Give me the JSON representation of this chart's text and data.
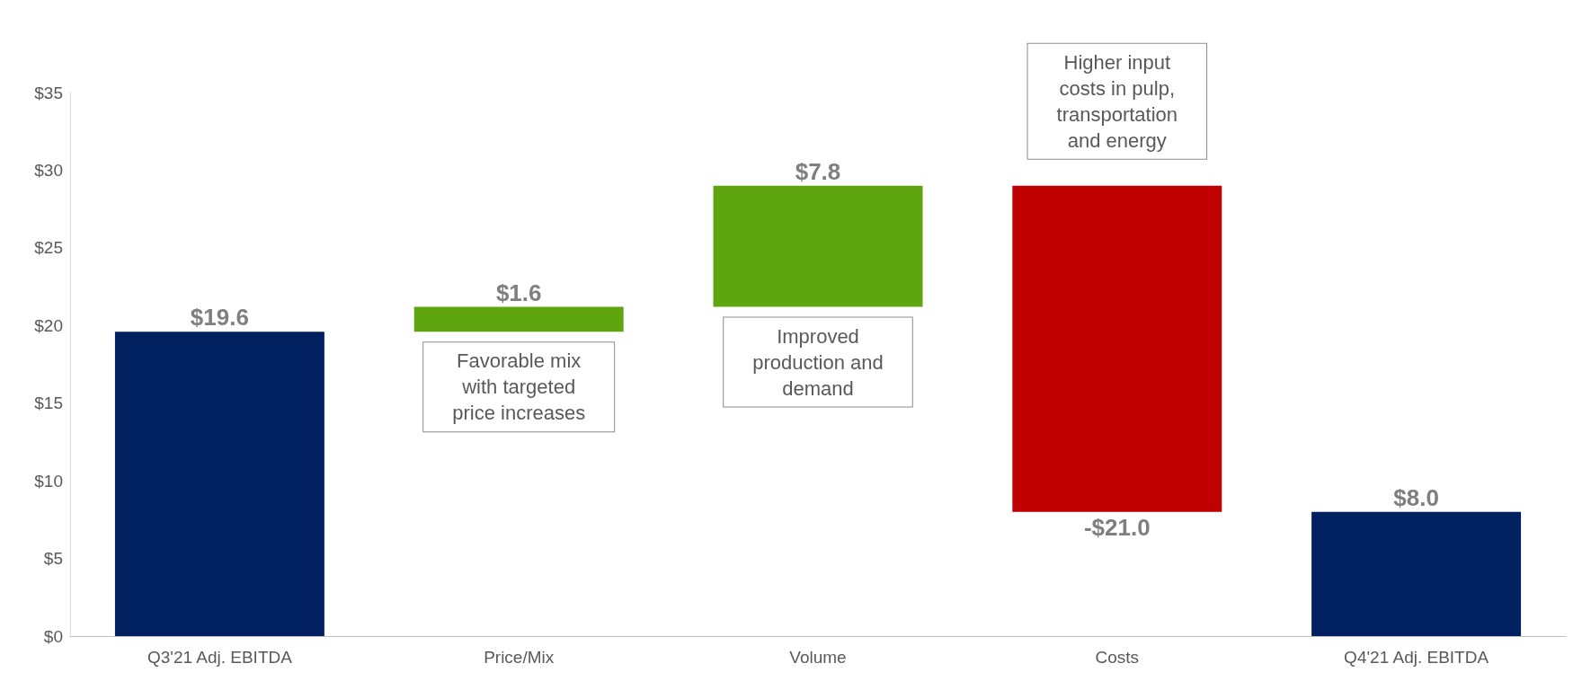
{
  "chart_data": {
    "type": "bar",
    "categories": [
      "Q3'21 Adj. EBITDA",
      "Price/Mix",
      "Volume",
      "Costs",
      "Q4'21 Adj. EBITDA"
    ],
    "values": [
      19.6,
      1.6,
      7.8,
      -21.0,
      8.0
    ],
    "base": [
      0,
      19.6,
      21.2,
      29.0,
      0
    ],
    "colors": [
      "#002060",
      "#5fa510",
      "#5fa510",
      "#c00000",
      "#002060"
    ],
    "value_labels": [
      "$19.6",
      "$1.6",
      "$7.8",
      "-$21.0",
      "$8.0"
    ],
    "ylim": [
      0,
      35
    ],
    "yticks": [
      {
        "value": 0,
        "label": "$0"
      },
      {
        "value": 5,
        "label": "$5"
      },
      {
        "value": 10,
        "label": "$10"
      },
      {
        "value": 15,
        "label": "$15"
      },
      {
        "value": 20,
        "label": "$20"
      },
      {
        "value": 25,
        "label": "$25"
      },
      {
        "value": 30,
        "label": "$30"
      },
      {
        "value": 35,
        "label": "$35"
      }
    ],
    "grid": false,
    "annotations": [
      "Favorable mix\nwith targeted\nprice increases",
      "Improved\nproduction and\ndemand",
      "Higher input\ncosts in pulp,\ntransportation\nand energy"
    ]
  }
}
